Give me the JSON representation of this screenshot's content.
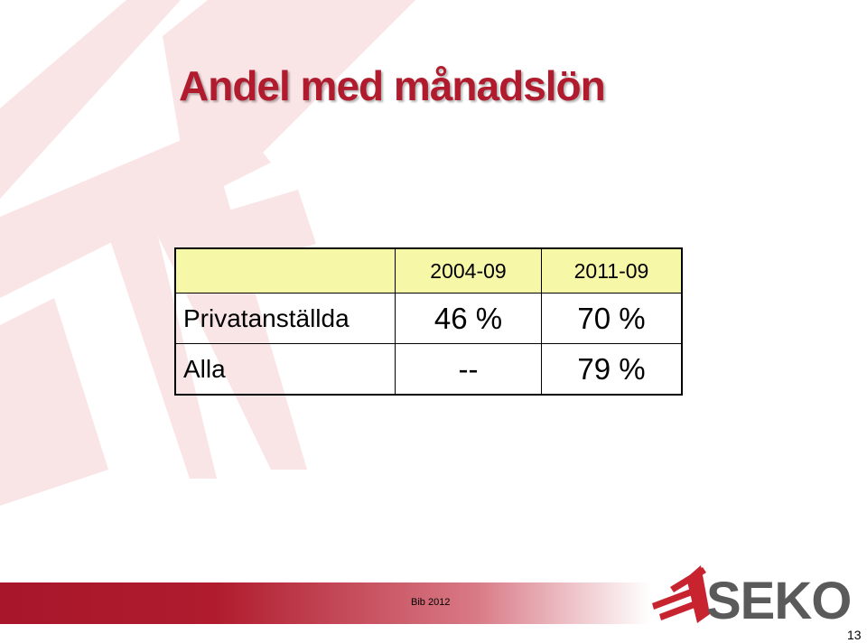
{
  "title": "Andel med månadslön",
  "table": {
    "columns": [
      "2004-09",
      "2011-09"
    ],
    "rows": [
      {
        "label": "Privatanställda",
        "cells": [
          "46 %",
          "70 %"
        ]
      },
      {
        "label": "Alla",
        "cells": [
          "--",
          "79 %"
        ]
      }
    ]
  },
  "footer": {
    "note": "Bib 2012",
    "logo": "SEKO",
    "page": "13"
  }
}
